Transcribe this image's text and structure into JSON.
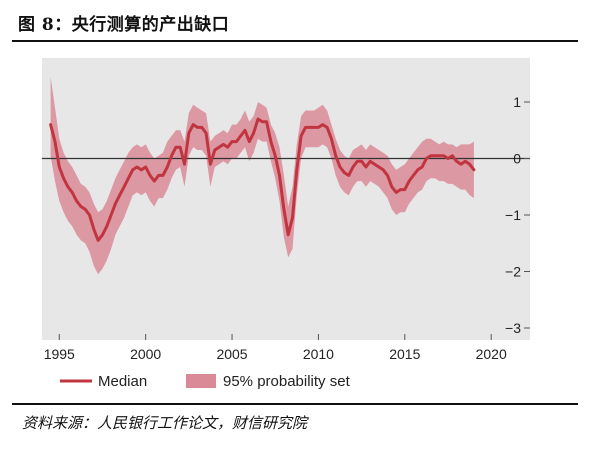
{
  "figure": {
    "title": "图 8：央行测算的产出缺口",
    "source": "资料来源：人民银行工作论文，财信研究院"
  },
  "colors": {
    "median": "#c0353f",
    "band": "#d98a96",
    "panel": "#e7e7e7",
    "zero_line": "#333333"
  },
  "chart_data": {
    "type": "line",
    "xlim": [
      1994,
      2020.8
    ],
    "ylim": [
      -3.0,
      1.9
    ],
    "x_ticks": [
      1995,
      2000,
      2005,
      2010,
      2015,
      2020
    ],
    "x_tick_labels": [
      "1995",
      "2000",
      "2005",
      "2010",
      "2015",
      "2020"
    ],
    "y_ticks": [
      1,
      0,
      -1,
      -2,
      -3
    ],
    "y_tick_labels": [
      "1",
      "0",
      "−1",
      "−2",
      "−3"
    ],
    "y_axis_position": "right",
    "grid": false,
    "zero_line": true,
    "legend_position": "bottom",
    "legend": [
      "Median",
      "95% probability set"
    ],
    "series": [
      {
        "name": "Median",
        "x": [
          1994.5,
          1994.75,
          1995.0,
          1995.25,
          1995.5,
          1995.75,
          1996.0,
          1996.25,
          1996.5,
          1996.75,
          1997.0,
          1997.25,
          1997.5,
          1997.75,
          1998.0,
          1998.25,
          1998.5,
          1998.75,
          1999.0,
          1999.25,
          1999.5,
          1999.75,
          2000.0,
          2000.25,
          2000.5,
          2000.75,
          2001.0,
          2001.25,
          2001.5,
          2001.75,
          2002.0,
          2002.25,
          2002.5,
          2002.75,
          2003.0,
          2003.25,
          2003.5,
          2003.75,
          2004.0,
          2004.25,
          2004.5,
          2004.75,
          2005.0,
          2005.25,
          2005.5,
          2005.75,
          2006.0,
          2006.25,
          2006.5,
          2006.75,
          2007.0,
          2007.25,
          2007.5,
          2007.75,
          2008.0,
          2008.25,
          2008.5,
          2008.75,
          2009.0,
          2009.25,
          2009.5,
          2009.75,
          2010.0,
          2010.25,
          2010.5,
          2010.75,
          2011.0,
          2011.25,
          2011.5,
          2011.75,
          2012.0,
          2012.25,
          2012.5,
          2012.75,
          2013.0,
          2013.25,
          2013.5,
          2013.75,
          2014.0,
          2014.25,
          2014.5,
          2014.75,
          2015.0,
          2015.25,
          2015.5,
          2015.75,
          2016.0,
          2016.25,
          2016.5,
          2016.75,
          2017.0,
          2017.25,
          2017.5,
          2017.75,
          2018.0,
          2018.25,
          2018.5,
          2018.75,
          2019.0
        ],
        "values": [
          0.6,
          0.3,
          -0.15,
          -0.35,
          -0.5,
          -0.6,
          -0.75,
          -0.85,
          -0.9,
          -1.0,
          -1.25,
          -1.45,
          -1.35,
          -1.2,
          -1.0,
          -0.8,
          -0.65,
          -0.5,
          -0.35,
          -0.2,
          -0.15,
          -0.2,
          -0.15,
          -0.3,
          -0.4,
          -0.3,
          -0.3,
          -0.15,
          0.05,
          0.2,
          0.2,
          -0.1,
          0.45,
          0.6,
          0.55,
          0.55,
          0.45,
          -0.1,
          0.15,
          0.2,
          0.25,
          0.2,
          0.3,
          0.3,
          0.4,
          0.5,
          0.3,
          0.45,
          0.7,
          0.65,
          0.65,
          0.3,
          0.05,
          -0.3,
          -0.9,
          -1.35,
          -1.05,
          -0.2,
          0.4,
          0.55,
          0.55,
          0.55,
          0.55,
          0.6,
          0.55,
          0.35,
          0.05,
          -0.15,
          -0.25,
          -0.3,
          -0.15,
          -0.05,
          -0.05,
          -0.15,
          -0.05,
          -0.1,
          -0.15,
          -0.2,
          -0.3,
          -0.5,
          -0.6,
          -0.55,
          -0.55,
          -0.4,
          -0.3,
          -0.2,
          -0.15,
          0.0,
          0.05,
          0.05,
          0.05,
          0.05,
          0.0,
          0.05,
          -0.05,
          -0.1,
          -0.05,
          -0.1,
          -0.2
        ]
      },
      {
        "name": "95% probability set",
        "x": [
          1994.5,
          1994.75,
          1995.0,
          1995.25,
          1995.5,
          1995.75,
          1996.0,
          1996.25,
          1996.5,
          1996.75,
          1997.0,
          1997.25,
          1997.5,
          1997.75,
          1998.0,
          1998.25,
          1998.5,
          1998.75,
          1999.0,
          1999.25,
          1999.5,
          1999.75,
          2000.0,
          2000.25,
          2000.5,
          2000.75,
          2001.0,
          2001.25,
          2001.5,
          2001.75,
          2002.0,
          2002.25,
          2002.5,
          2002.75,
          2003.0,
          2003.25,
          2003.5,
          2003.75,
          2004.0,
          2004.25,
          2004.5,
          2004.75,
          2005.0,
          2005.25,
          2005.5,
          2005.75,
          2006.0,
          2006.25,
          2006.5,
          2006.75,
          2007.0,
          2007.25,
          2007.5,
          2007.75,
          2008.0,
          2008.25,
          2008.5,
          2008.75,
          2009.0,
          2009.25,
          2009.5,
          2009.75,
          2010.0,
          2010.25,
          2010.5,
          2010.75,
          2011.0,
          2011.25,
          2011.5,
          2011.75,
          2012.0,
          2012.25,
          2012.5,
          2012.75,
          2013.0,
          2013.25,
          2013.5,
          2013.75,
          2014.0,
          2014.25,
          2014.5,
          2014.75,
          2015.0,
          2015.25,
          2015.5,
          2015.75,
          2016.0,
          2016.25,
          2016.5,
          2016.75,
          2017.0,
          2017.25,
          2017.5,
          2017.75,
          2018.0,
          2018.25,
          2018.5,
          2018.75,
          2019.0
        ],
        "upper": [
          1.45,
          0.9,
          0.35,
          0.1,
          -0.05,
          -0.15,
          -0.3,
          -0.45,
          -0.5,
          -0.6,
          -0.8,
          -0.95,
          -0.9,
          -0.75,
          -0.55,
          -0.35,
          -0.2,
          -0.05,
          0.1,
          0.2,
          0.25,
          0.2,
          0.25,
          0.1,
          0.0,
          0.05,
          0.1,
          0.3,
          0.4,
          0.5,
          0.5,
          0.3,
          0.8,
          0.95,
          0.9,
          0.85,
          0.8,
          0.3,
          0.4,
          0.45,
          0.5,
          0.45,
          0.6,
          0.6,
          0.7,
          0.85,
          0.65,
          0.75,
          1.0,
          0.95,
          0.9,
          0.6,
          0.45,
          0.2,
          -0.3,
          -0.85,
          -0.5,
          0.25,
          0.75,
          0.85,
          0.85,
          0.85,
          0.9,
          0.95,
          0.85,
          0.6,
          0.35,
          0.15,
          0.05,
          0.0,
          0.15,
          0.2,
          0.25,
          0.15,
          0.25,
          0.2,
          0.15,
          0.1,
          0.05,
          -0.1,
          -0.2,
          -0.15,
          -0.1,
          0.0,
          0.1,
          0.2,
          0.3,
          0.35,
          0.35,
          0.3,
          0.25,
          0.3,
          0.25,
          0.25,
          0.2,
          0.25,
          0.25,
          0.25,
          0.3
        ],
        "lower": [
          0.05,
          -0.4,
          -0.75,
          -0.95,
          -1.1,
          -1.2,
          -1.35,
          -1.45,
          -1.5,
          -1.65,
          -1.9,
          -2.05,
          -1.95,
          -1.8,
          -1.6,
          -1.35,
          -1.2,
          -1.05,
          -0.85,
          -0.65,
          -0.6,
          -0.65,
          -0.6,
          -0.75,
          -0.85,
          -0.7,
          -0.7,
          -0.55,
          -0.35,
          -0.2,
          -0.15,
          -0.5,
          0.05,
          0.2,
          0.15,
          0.15,
          0.05,
          -0.5,
          -0.15,
          -0.1,
          -0.05,
          -0.1,
          0.0,
          0.0,
          0.1,
          0.2,
          -0.05,
          0.1,
          0.35,
          0.3,
          0.3,
          -0.05,
          -0.35,
          -0.75,
          -1.4,
          -1.75,
          -1.6,
          -0.65,
          0.0,
          0.2,
          0.2,
          0.2,
          0.2,
          0.25,
          0.2,
          0.0,
          -0.3,
          -0.5,
          -0.6,
          -0.65,
          -0.5,
          -0.4,
          -0.4,
          -0.5,
          -0.4,
          -0.45,
          -0.5,
          -0.6,
          -0.7,
          -0.9,
          -1.0,
          -0.95,
          -0.95,
          -0.8,
          -0.7,
          -0.6,
          -0.55,
          -0.4,
          -0.35,
          -0.35,
          -0.4,
          -0.4,
          -0.45,
          -0.45,
          -0.5,
          -0.55,
          -0.55,
          -0.65,
          -0.7
        ]
      }
    ]
  }
}
